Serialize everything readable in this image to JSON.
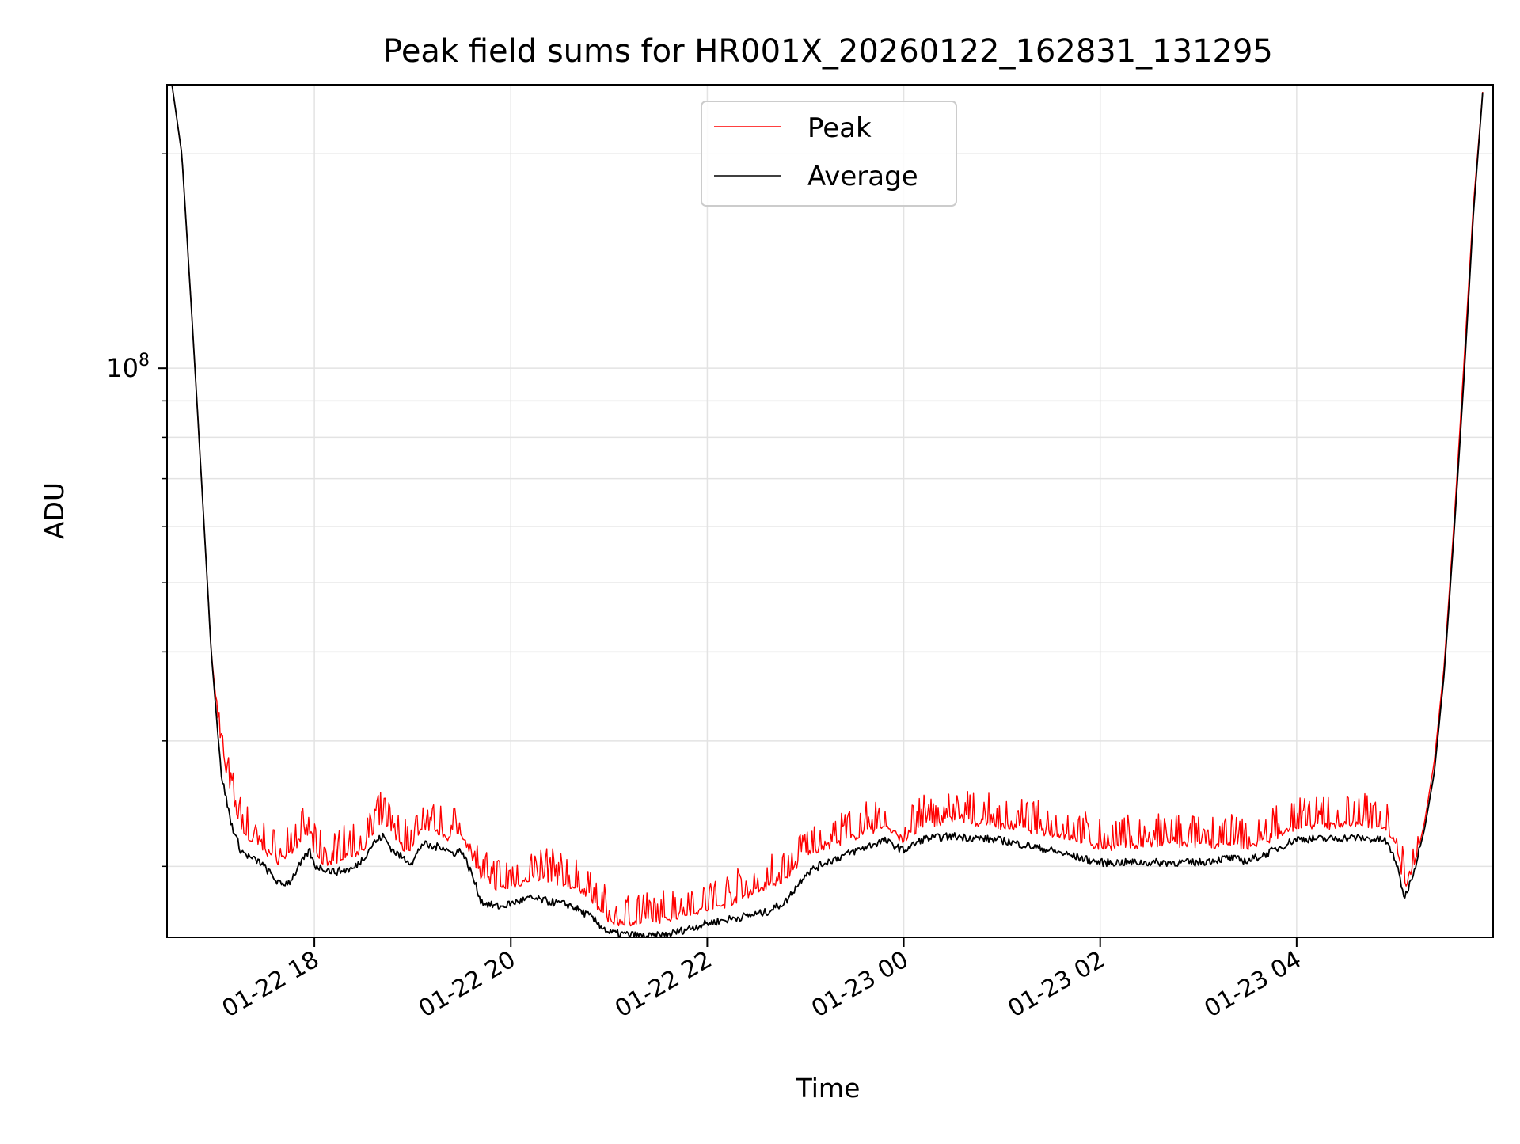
{
  "chart_data": {
    "type": "line",
    "title": "Peak field sums for HR001X_20260122_162831_131295",
    "xlabel": "Time",
    "ylabel": "ADU",
    "y_scale": "log",
    "ylim": [
      15900000,
      250000000
    ],
    "x_range_hours": [
      -1.5,
      12.0
    ],
    "y_tick_labels": [
      {
        "value": 100000000,
        "base": "10",
        "exponent": "8"
      }
    ],
    "y_minor_ticks": [
      20000000,
      30000000,
      40000000,
      50000000,
      60000000,
      70000000,
      80000000,
      90000000,
      200000000
    ],
    "x_ticks": [
      {
        "hours": 0,
        "label": "01-22 18"
      },
      {
        "hours": 2,
        "label": "01-22 20"
      },
      {
        "hours": 4,
        "label": "01-22 22"
      },
      {
        "hours": 6,
        "label": "01-23 00"
      },
      {
        "hours": 8,
        "label": "01-23 02"
      },
      {
        "hours": 10,
        "label": "01-23 04"
      }
    ],
    "grid": true,
    "legend": "upper-center",
    "series": [
      {
        "name": "Peak",
        "color": "#ff0000",
        "spikes": true,
        "hours": [
          -1.45,
          -1.35,
          -1.25,
          -1.15,
          -1.05,
          -0.95,
          -0.85,
          -0.75,
          -0.65,
          -0.55,
          -0.45,
          -0.35,
          -0.25,
          -0.15,
          -0.05,
          0.0,
          0.1,
          0.2,
          0.3,
          0.4,
          0.5,
          0.6,
          0.7,
          0.8,
          0.9,
          1.0,
          1.1,
          1.2,
          1.3,
          1.4,
          1.5,
          1.6,
          1.7,
          1.8,
          1.9,
          2.0,
          2.2,
          2.4,
          2.6,
          2.8,
          3.0,
          3.2,
          3.4,
          3.6,
          3.8,
          4.0,
          4.2,
          4.4,
          4.6,
          4.8,
          5.0,
          5.2,
          5.4,
          5.6,
          5.8,
          6.0,
          6.2,
          6.5,
          7.0,
          7.5,
          7.8,
          8.0,
          8.5,
          9.0,
          9.3,
          9.5,
          9.7,
          10.0,
          10.3,
          10.6,
          10.9,
          11.0,
          11.1,
          11.2,
          11.3,
          11.4,
          11.5,
          11.6,
          11.7,
          11.8,
          11.9
        ],
        "values": [
          250000000,
          200000000,
          120000000,
          70000000,
          40000000,
          29000000,
          25000000,
          22500000,
          21500000,
          21000000,
          20500000,
          20000000,
          20500000,
          21500000,
          22000000,
          20500000,
          20000000,
          20000000,
          20500000,
          20500000,
          21000000,
          22000000,
          23000000,
          22000000,
          21000000,
          21000000,
          22500000,
          22000000,
          22000000,
          21500000,
          22000000,
          20500000,
          19000000,
          18500000,
          18500000,
          18500000,
          19000000,
          19000000,
          18500000,
          18000000,
          16500000,
          16500000,
          16500000,
          16700000,
          17000000,
          17200000,
          17500000,
          18000000,
          18500000,
          19000000,
          20500000,
          21000000,
          21500000,
          22000000,
          22500000,
          21500000,
          22500000,
          23000000,
          22500000,
          22000000,
          21500000,
          21000000,
          21200000,
          21200000,
          21200000,
          21000000,
          21500000,
          22500000,
          22500000,
          22700000,
          22500000,
          21500000,
          18500000,
          20000000,
          23000000,
          28000000,
          38000000,
          60000000,
          100000000,
          170000000,
          250000000
        ]
      },
      {
        "name": "Average",
        "color": "#000000",
        "spikes": false,
        "hours": [
          -1.45,
          -1.35,
          -1.25,
          -1.15,
          -1.05,
          -0.95,
          -0.85,
          -0.75,
          -0.65,
          -0.55,
          -0.45,
          -0.35,
          -0.25,
          -0.15,
          -0.05,
          0.0,
          0.1,
          0.2,
          0.3,
          0.4,
          0.5,
          0.6,
          0.7,
          0.8,
          0.9,
          1.0,
          1.1,
          1.2,
          1.3,
          1.4,
          1.5,
          1.6,
          1.7,
          1.8,
          1.9,
          2.0,
          2.2,
          2.4,
          2.6,
          2.8,
          3.0,
          3.2,
          3.4,
          3.6,
          3.8,
          4.0,
          4.2,
          4.4,
          4.6,
          4.8,
          5.0,
          5.2,
          5.4,
          5.6,
          5.8,
          6.0,
          6.2,
          6.5,
          7.0,
          7.5,
          7.8,
          8.0,
          8.5,
          9.0,
          9.3,
          9.5,
          9.7,
          10.0,
          10.3,
          10.6,
          10.9,
          11.0,
          11.1,
          11.2,
          11.3,
          11.4,
          11.5,
          11.6,
          11.7,
          11.8,
          11.9
        ],
        "values": [
          250000000,
          200000000,
          120000000,
          70000000,
          40000000,
          27000000,
          23000000,
          21000000,
          20500000,
          20200000,
          19500000,
          18800000,
          19000000,
          20000000,
          21000000,
          20000000,
          19800000,
          19600000,
          19700000,
          19800000,
          20500000,
          21500000,
          22000000,
          21000000,
          20500000,
          20200000,
          21500000,
          21200000,
          21300000,
          20800000,
          21000000,
          19500000,
          17800000,
          17600000,
          17500000,
          17700000,
          18000000,
          17800000,
          17600000,
          17000000,
          16100000,
          16000000,
          15900000,
          16000000,
          16300000,
          16600000,
          16800000,
          17000000,
          17200000,
          17800000,
          19500000,
          20200000,
          20700000,
          21200000,
          21700000,
          21000000,
          21800000,
          22000000,
          21700000,
          21000000,
          20500000,
          20200000,
          20200000,
          20200000,
          20500000,
          20300000,
          20800000,
          21800000,
          21800000,
          21900000,
          21700000,
          20500000,
          18000000,
          19800000,
          22500000,
          27000000,
          37000000,
          58000000,
          95000000,
          165000000,
          250000000
        ]
      }
    ]
  }
}
